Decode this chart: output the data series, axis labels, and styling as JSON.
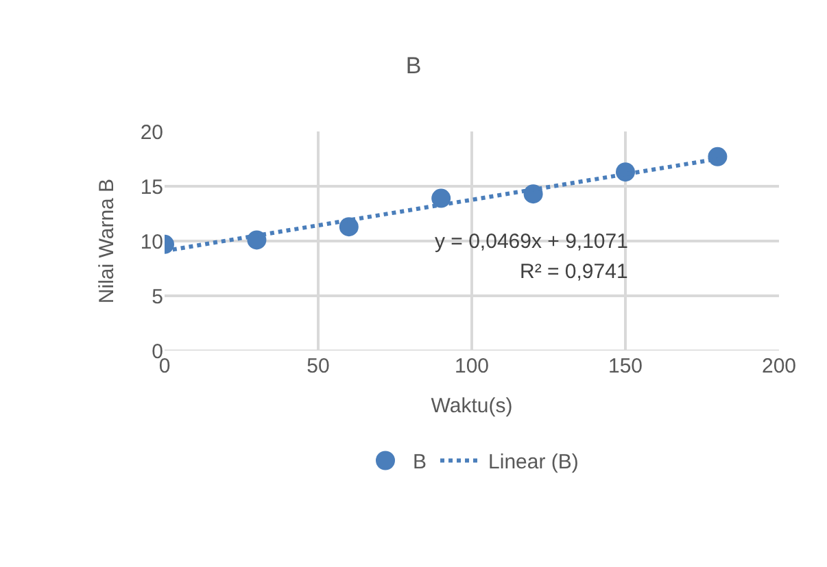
{
  "chart_data": {
    "type": "scatter",
    "title": "B",
    "xlabel": "Waktu(s)",
    "ylabel": "Nilai Warna B",
    "x": [
      0,
      30,
      60,
      90,
      120,
      150,
      180
    ],
    "series": [
      {
        "name": "B",
        "color": "#4a7ebb",
        "values": [
          9.7,
          10.1,
          11.3,
          13.9,
          14.3,
          16.3,
          17.7
        ],
        "marker": "circle"
      },
      {
        "name": "Linear (B)",
        "type": "line",
        "color": "#4a7ebb",
        "x": [
          0,
          180
        ],
        "values": [
          9.1,
          17.5
        ],
        "line_style": "dotted",
        "marker": "none"
      }
    ],
    "annotations": [
      "y = 0,0469x + 9,1071",
      "R² = 0,9741"
    ],
    "xlim": [
      0,
      200
    ],
    "xticks": [
      0,
      50,
      100,
      150,
      200
    ],
    "ylim": [
      0,
      20
    ],
    "yticks": [
      0,
      5,
      10,
      15,
      20
    ],
    "grid": true,
    "legend": "bottom"
  }
}
